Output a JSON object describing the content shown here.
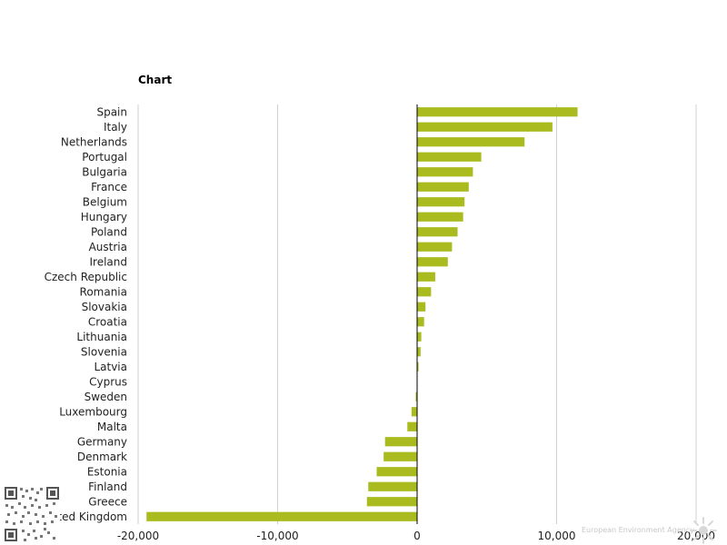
{
  "chart_title": "Chart",
  "credit": "European Environment Agency",
  "colors": {
    "bar": "#a9bb1f",
    "grid": "#d0d0d0",
    "axis": "#000000"
  },
  "chart_data": {
    "type": "bar",
    "orientation": "horizontal",
    "title": "Chart",
    "xlabel": "",
    "ylabel": "",
    "xlim": [
      -20000,
      20000
    ],
    "x_ticks": [
      -20000,
      -10000,
      0,
      10000,
      20000
    ],
    "x_tick_labels": [
      "-20,000",
      "-10,000",
      "0",
      "10,000",
      "20,000"
    ],
    "grid": true,
    "categories": [
      "Spain",
      "Italy",
      "Netherlands",
      "Portugal",
      "Bulgaria",
      "France",
      "Belgium",
      "Hungary",
      "Poland",
      "Austria",
      "Ireland",
      "Czech Republic",
      "Romania",
      "Slovakia",
      "Croatia",
      "Lithuania",
      "Slovenia",
      "Latvia",
      "Cyprus",
      "Sweden",
      "Luxembourg",
      "Malta",
      "Germany",
      "Denmark",
      "Estonia",
      "Finland",
      "Greece",
      "United Kingdom"
    ],
    "values": [
      11500,
      9700,
      7700,
      4600,
      4000,
      3700,
      3400,
      3300,
      2900,
      2500,
      2200,
      1300,
      1000,
      600,
      500,
      300,
      250,
      100,
      0,
      -100,
      -400,
      -700,
      -2300,
      -2400,
      -2900,
      -3500,
      -3600,
      -19400
    ]
  }
}
